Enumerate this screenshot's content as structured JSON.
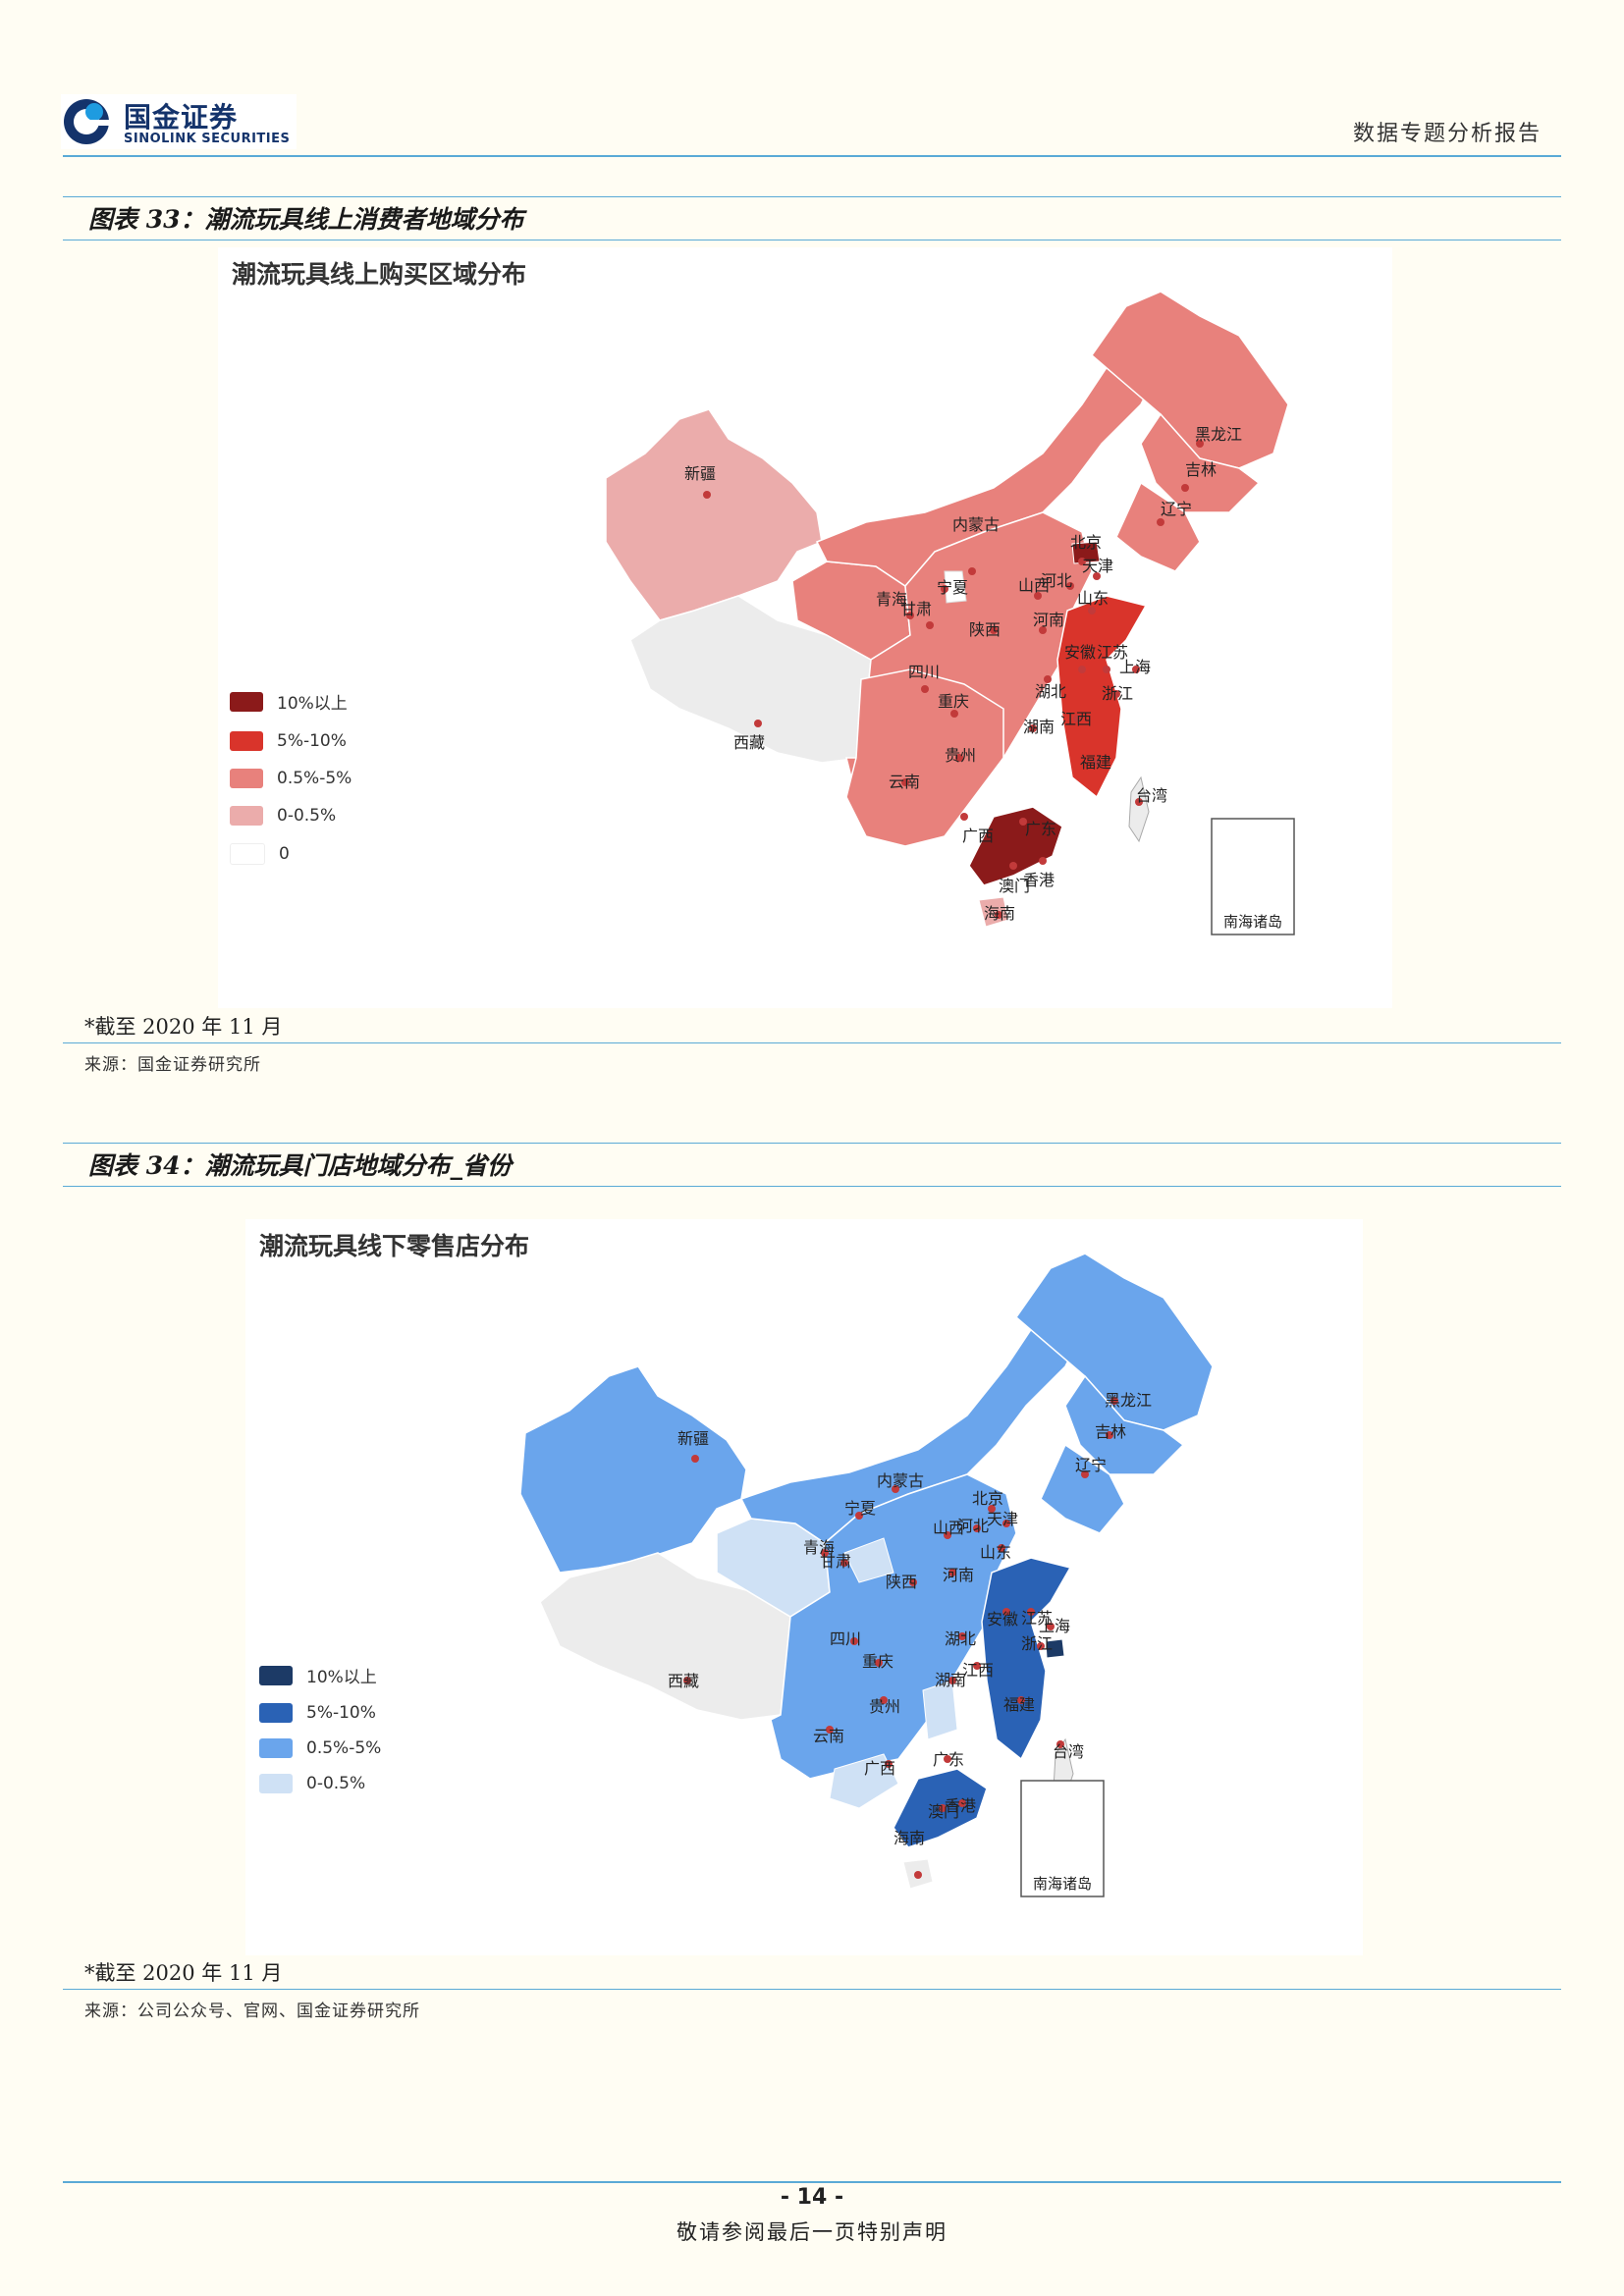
{
  "header": {
    "logo_cn": "国金证券",
    "logo_en": "SINOLINK SECURITIES",
    "report_type": "数据专题分析报告"
  },
  "figure33": {
    "title": "图表 33：潮流玩具线上消费者地域分布",
    "chart_title": "潮流玩具线上购买区域分布",
    "note": "*截至 2020 年 11 月",
    "source": "来源：国金证券研究所",
    "legend": [
      {
        "label": "10%以上",
        "color": "#8b1a1a"
      },
      {
        "label": "5%-10%",
        "color": "#d9342b"
      },
      {
        "label": "0.5%-5%",
        "color": "#e8817c"
      },
      {
        "label": "0-0.5%",
        "color": "#ebacab"
      },
      {
        "label": "0",
        "color": "#ffffff"
      }
    ],
    "inset_label": "南海诸岛"
  },
  "figure34": {
    "title": "图表 34：潮流玩具门店地域分布_省份",
    "chart_title": "潮流玩具线下零售店分布",
    "note": "*截至 2020 年 11 月",
    "source": "来源：公司公众号、官网、国金证券研究所",
    "legend": [
      {
        "label": "10%以上",
        "color": "#1c3a66"
      },
      {
        "label": "5%-10%",
        "color": "#2a62b5"
      },
      {
        "label": "0.5%-5%",
        "color": "#6aa5ec"
      },
      {
        "label": "0-0.5%",
        "color": "#cfe1f5"
      }
    ],
    "inset_label": "南海诸岛"
  },
  "map_labels": [
    "黑龙江",
    "吉林",
    "辽宁",
    "内蒙古",
    "北京",
    "天津",
    "河北",
    "山西",
    "山东",
    "宁夏",
    "青海",
    "甘肃",
    "新疆",
    "西藏",
    "陕西",
    "河南",
    "安徽",
    "江苏",
    "上海",
    "浙江",
    "湖北",
    "四川",
    "重庆",
    "湖南",
    "江西",
    "贵州",
    "云南",
    "福建",
    "台湾",
    "广西",
    "广东",
    "澳门",
    "香港",
    "海南"
  ],
  "footer": {
    "page": "- 14 -",
    "disclaimer": "敬请参阅最后一页特别声明"
  }
}
